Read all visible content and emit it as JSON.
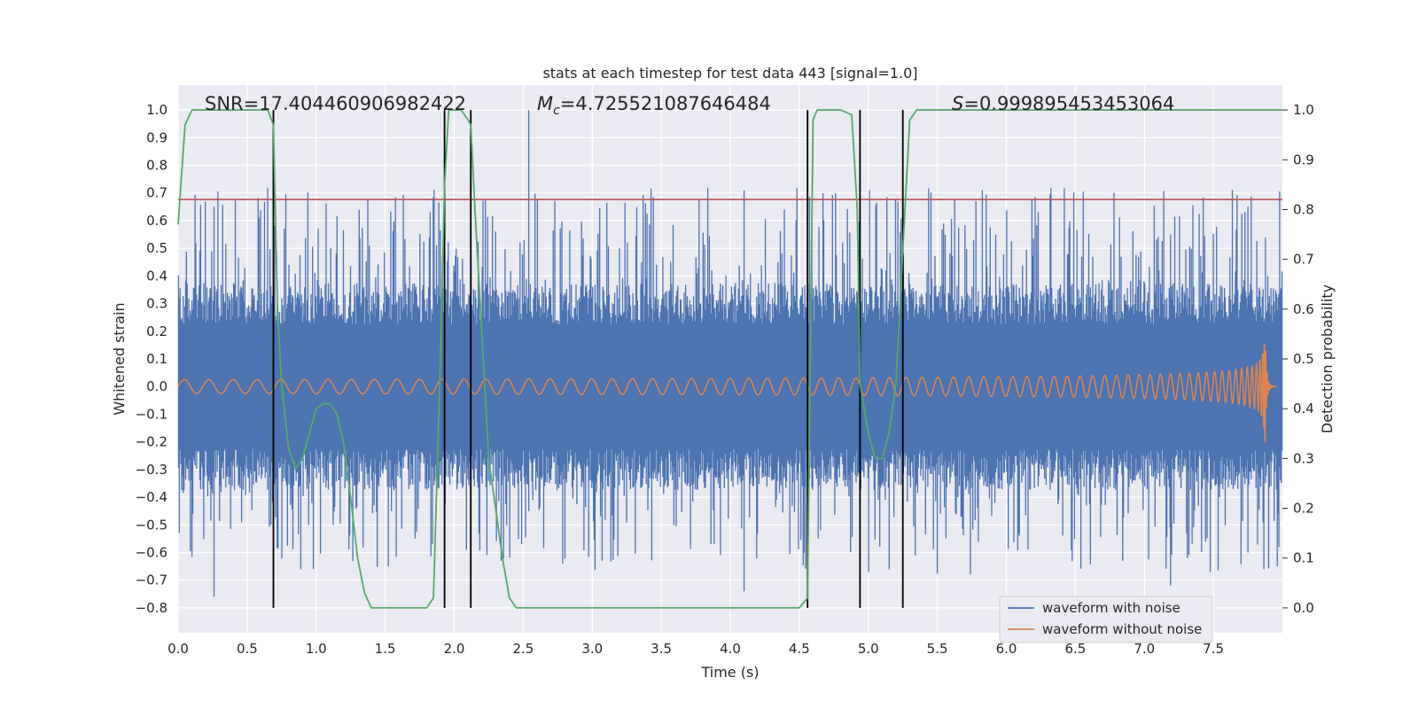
{
  "chart_data": {
    "type": "line",
    "title": "stats at each timestep for test data 443 [signal=1.0]",
    "xlabel": "Time (s)",
    "ylabel": "Whitened strain",
    "y2label": "Detection probability",
    "xlim": [
      0.0,
      8.0
    ],
    "ylim": [
      -0.89,
      1.09
    ],
    "y2lim": [
      -0.05,
      1.05
    ],
    "xticks": [
      0.0,
      0.5,
      1.0,
      1.5,
      2.0,
      2.5,
      3.0,
      3.5,
      4.0,
      4.5,
      5.0,
      5.5,
      6.0,
      6.5,
      7.0,
      7.5
    ],
    "xtick_labels": [
      "0.0",
      "0.5",
      "1.0",
      "1.5",
      "2.0",
      "2.5",
      "3.0",
      "3.5",
      "4.0",
      "4.5",
      "5.0",
      "5.5",
      "6.0",
      "6.5",
      "7.0",
      "7.5"
    ],
    "yticks": [
      -0.8,
      -0.7,
      -0.6,
      -0.5,
      -0.4,
      -0.3,
      -0.2,
      -0.1,
      0.0,
      0.1,
      0.2,
      0.3,
      0.4,
      0.5,
      0.6,
      0.7,
      0.8,
      0.9,
      1.0
    ],
    "ytick_labels": [
      "−0.8",
      "−0.7",
      "−0.6",
      "−0.5",
      "−0.4",
      "−0.3",
      "−0.2",
      "−0.1",
      "0.0",
      "0.1",
      "0.2",
      "0.3",
      "0.4",
      "0.5",
      "0.6",
      "0.7",
      "0.8",
      "0.9",
      "1.0"
    ],
    "y2ticks": [
      0.0,
      0.1,
      0.2,
      0.3,
      0.4,
      0.5,
      0.6,
      0.7,
      0.8,
      0.9,
      1.0
    ],
    "y2tick_labels": [
      "0.0",
      "0.1",
      "0.2",
      "0.3",
      "0.4",
      "0.5",
      "0.6",
      "0.7",
      "0.8",
      "0.9",
      "1.0"
    ],
    "stats": {
      "snr": "SNR=17.404460906982422",
      "mc_symbol": "M",
      "mc_sub": "c",
      "mc_value": "=4.725521087646484",
      "s_symbol": "S",
      "s_value": "=0.999895453453064"
    },
    "threshold": {
      "value": 0.82,
      "color": "#c44e52"
    },
    "vertical_lines": [
      0.69,
      1.93,
      2.12,
      4.56,
      4.94,
      5.25
    ],
    "series": [
      {
        "name": "waveform with noise",
        "color": "#4c72b0",
        "kind": "noise_envelope",
        "typical_amplitude": 0.3,
        "spike_max": 1.0,
        "spike_min": -0.76
      },
      {
        "name": "waveform without noise",
        "color": "#dd8452",
        "kind": "chirp",
        "start_amplitude": 0.025,
        "peak_amplitude": 0.3,
        "merger_time": 7.87
      },
      {
        "name": "Detection probability",
        "color": "#55a868",
        "axis": "right",
        "x": [
          0.0,
          0.05,
          0.1,
          0.15,
          0.2,
          0.3,
          0.4,
          0.5,
          0.6,
          0.65,
          0.69,
          0.72,
          0.75,
          0.8,
          0.85,
          0.9,
          0.95,
          1.0,
          1.05,
          1.1,
          1.15,
          1.2,
          1.25,
          1.3,
          1.35,
          1.4,
          1.45,
          1.5,
          1.6,
          1.7,
          1.75,
          1.8,
          1.85,
          1.9,
          1.93,
          1.96,
          2.0,
          2.05,
          2.1,
          2.12,
          2.15,
          2.2,
          2.25,
          2.3,
          2.35,
          2.4,
          2.45,
          2.5,
          2.6,
          3.0,
          3.5,
          4.0,
          4.4,
          4.5,
          4.56,
          4.58,
          4.6,
          4.63,
          4.7,
          4.8,
          4.88,
          4.92,
          4.94,
          5.0,
          5.05,
          5.1,
          5.15,
          5.2,
          5.25,
          5.3,
          5.35,
          5.4,
          5.5,
          6.0,
          6.5,
          7.0,
          7.5,
          8.0
        ],
        "y": [
          0.77,
          0.97,
          1.0,
          1.0,
          1.0,
          1.0,
          1.0,
          1.0,
          1.0,
          1.0,
          0.97,
          0.6,
          0.45,
          0.32,
          0.28,
          0.3,
          0.35,
          0.4,
          0.41,
          0.41,
          0.39,
          0.33,
          0.22,
          0.1,
          0.03,
          0.0,
          0.0,
          0.0,
          0.0,
          0.0,
          0.0,
          0.0,
          0.02,
          0.5,
          0.85,
          1.0,
          1.0,
          1.0,
          0.98,
          0.97,
          0.8,
          0.55,
          0.3,
          0.2,
          0.1,
          0.02,
          0.0,
          0.0,
          0.0,
          0.0,
          0.0,
          0.0,
          0.0,
          0.0,
          0.02,
          0.5,
          0.98,
          1.0,
          1.0,
          1.0,
          0.99,
          0.8,
          0.45,
          0.35,
          0.3,
          0.3,
          0.35,
          0.45,
          0.72,
          0.98,
          1.0,
          1.0,
          1.0,
          1.0,
          1.0,
          1.0,
          1.0,
          1.0
        ]
      }
    ],
    "legend_position": "lower-right"
  }
}
